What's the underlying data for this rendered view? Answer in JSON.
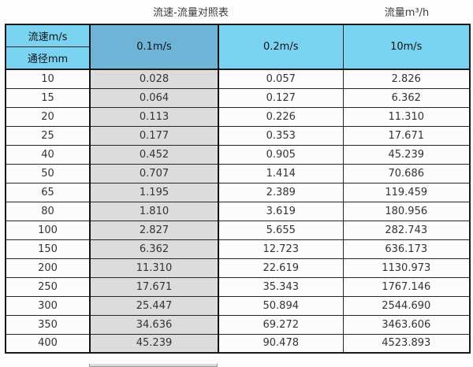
{
  "page": {
    "title": "流速-流量对照表",
    "unit_label": "流量m³/h"
  },
  "colors": {
    "header_blue": "#7BD3F2",
    "highlight_header_blue": "#6FB4D7",
    "highlight_column_gray": "#DCDCDC",
    "border_black": "#1a1a1a",
    "body_text": "#333333"
  },
  "chart_data": {
    "type": "table",
    "title": "流速-流量对照表",
    "unit_label": "流量m³/h",
    "col_header_label": "流速m/s",
    "row_header_label": "通径mm",
    "columns": [
      "0.1m/s",
      "0.2m/s",
      "10m/s"
    ],
    "highlighted_column": "0.1m/s",
    "rows": [
      {
        "diameter": "10",
        "values": [
          "0.028",
          "0.057",
          "2.826"
        ]
      },
      {
        "diameter": "15",
        "values": [
          "0.064",
          "0.127",
          "6.362"
        ]
      },
      {
        "diameter": "20",
        "values": [
          "0.113",
          "0.226",
          "11.310"
        ]
      },
      {
        "diameter": "25",
        "values": [
          "0.177",
          "0.353",
          "17.671"
        ]
      },
      {
        "diameter": "40",
        "values": [
          "0.452",
          "0.905",
          "45.239"
        ]
      },
      {
        "diameter": "50",
        "values": [
          "0.707",
          "1.414",
          "70.686"
        ]
      },
      {
        "diameter": "65",
        "values": [
          "1.195",
          "2.389",
          "119.459"
        ]
      },
      {
        "diameter": "80",
        "values": [
          "1.810",
          "3.619",
          "180.956"
        ]
      },
      {
        "diameter": "100",
        "values": [
          "2.827",
          "5.655",
          "282.743"
        ]
      },
      {
        "diameter": "150",
        "values": [
          "6.362",
          "12.723",
          "636.173"
        ]
      },
      {
        "diameter": "200",
        "values": [
          "11.310",
          "22.619",
          "1130.973"
        ]
      },
      {
        "diameter": "250",
        "values": [
          "17.671",
          "35.343",
          "1767.146"
        ]
      },
      {
        "diameter": "300",
        "values": [
          "25.447",
          "50.894",
          "2544.690"
        ]
      },
      {
        "diameter": "350",
        "values": [
          "34.636",
          "69.272",
          "3463.606"
        ]
      },
      {
        "diameter": "400",
        "values": [
          "45.239",
          "90.478",
          "4523.893"
        ]
      }
    ]
  }
}
